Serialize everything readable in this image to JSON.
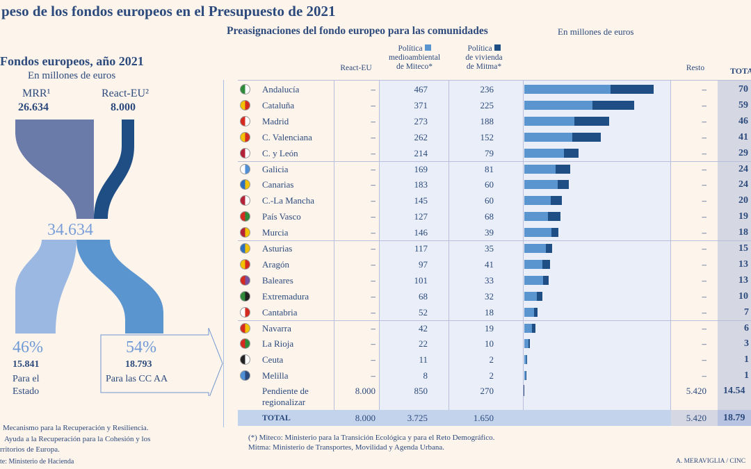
{
  "header": {
    "title": "peso de los fondos europeos en el Presupuesto de 2021",
    "subtitle": "Preasignaciones del fondo europeo para las comunidades",
    "unit": "En millones de euros"
  },
  "left": {
    "title": "Fondos europeos, año 2021",
    "unit": "En millones de euros",
    "mrr_label": "MRR¹",
    "mrr_value": "26.634",
    "react_label": "React-EU²",
    "react_value": "8.000",
    "total": "34.634",
    "estado_pct": "46%",
    "estado_value": "15.841",
    "estado_label1": "Para el",
    "estado_label2": "Estado",
    "ccaa_pct": "54%",
    "ccaa_value": "18.793",
    "ccaa_label": "Para las CC AA",
    "note1": "Mecanismo para la Recuperación y Resiliencia.",
    "note2": "Ayuda a la Recuperación para la Cohesión y los",
    "note3": "rritorios de Europa.",
    "source": "te: Ministerio de Hacienda",
    "colors": {
      "mrr": "#6a7aa9",
      "react": "#1f4e85",
      "estado": "#9ab8e2",
      "ccaa": "#5b95d0"
    }
  },
  "table": {
    "headers": {
      "react": "React-EU",
      "miteco1": "Política",
      "miteco2": "medioambiental",
      "miteco3": "de Miteco*",
      "mitma1": "Política",
      "mitma2": "de vivienda",
      "mitma3": "de Mitma*",
      "resto": "Resto",
      "total": "TOTA"
    },
    "rows": [
      {
        "region": "Andalucía",
        "react": "–",
        "resto": "–",
        "total": "70",
        "flag": [
          "#2e8b3a",
          "#ffffff"
        ]
      },
      {
        "region": "Cataluña",
        "react": "–",
        "resto": "–",
        "total": "59",
        "flag": [
          "#f2c200",
          "#d42a20"
        ]
      },
      {
        "region": "Madrid",
        "react": "–",
        "resto": "–",
        "total": "46",
        "flag": [
          "#d42a20",
          "#ffffff"
        ]
      },
      {
        "region": "C. Valenciana",
        "react": "–",
        "resto": "–",
        "total": "41",
        "flag": [
          "#f2c200",
          "#d42a20"
        ]
      },
      {
        "region": "C. y León",
        "react": "–",
        "resto": "–",
        "total": "29",
        "flag": [
          "#b32236",
          "#ffffff"
        ]
      },
      {
        "region": "Galicia",
        "react": "–",
        "resto": "–",
        "total": "24",
        "flag": [
          "#ffffff",
          "#4f8fd6"
        ]
      },
      {
        "region": "Canarias",
        "react": "–",
        "resto": "–",
        "total": "24",
        "flag": [
          "#2c6fc0",
          "#f2c200"
        ]
      },
      {
        "region": "C.-La Mancha",
        "react": "–",
        "resto": "–",
        "total": "20",
        "flag": [
          "#b32236",
          "#ffffff"
        ]
      },
      {
        "region": "País Vasco",
        "react": "–",
        "resto": "–",
        "total": "19",
        "flag": [
          "#d42a20",
          "#2e8b3a"
        ]
      },
      {
        "region": "Murcia",
        "react": "–",
        "resto": "–",
        "total": "18",
        "flag": [
          "#b32236",
          "#f2c200"
        ]
      },
      {
        "region": "Asturias",
        "react": "–",
        "resto": "–",
        "total": "15",
        "flag": [
          "#2c6fc0",
          "#f2c200"
        ]
      },
      {
        "region": "Aragón",
        "react": "–",
        "resto": "–",
        "total": "13",
        "flag": [
          "#f2c200",
          "#d42a20"
        ]
      },
      {
        "region": "Baleares",
        "react": "–",
        "resto": "–",
        "total": "13",
        "flag": [
          "#d42a20",
          "#7a4fa0"
        ]
      },
      {
        "region": "Extremadura",
        "react": "–",
        "resto": "–",
        "total": "10",
        "flag": [
          "#2e8b3a",
          "#222222"
        ]
      },
      {
        "region": "Cantabria",
        "react": "–",
        "resto": "–",
        "total": "7",
        "flag": [
          "#ffffff",
          "#d42a20"
        ]
      },
      {
        "region": "Navarra",
        "react": "–",
        "resto": "–",
        "total": "6",
        "flag": [
          "#d42a20",
          "#f2c200"
        ]
      },
      {
        "region": "La Rioja",
        "react": "–",
        "resto": "–",
        "total": "3",
        "flag": [
          "#d42a20",
          "#2e8b3a"
        ]
      },
      {
        "region": "Ceuta",
        "react": "–",
        "resto": "–",
        "total": "1",
        "flag": [
          "#222222",
          "#ffffff"
        ]
      },
      {
        "region": "Melilla",
        "react": "–",
        "resto": "–",
        "total": "1",
        "flag": [
          "#4f8fd6",
          "#2c4a7c"
        ]
      }
    ],
    "pending": {
      "region1": "Pendiente de",
      "region2": "regionalizar",
      "react": "8.000",
      "miteco": "850",
      "mitma": "270",
      "resto": "5.420",
      "total": "14.54"
    },
    "totals": {
      "label": "TOTAL",
      "react": "8.000",
      "miteco": "3.725",
      "mitma": "1.650",
      "resto": "5.420",
      "total": "18.79"
    }
  },
  "chart_data": {
    "type": "bar",
    "stacked": true,
    "orientation": "horizontal",
    "categories": [
      "Andalucía",
      "Cataluña",
      "Madrid",
      "C. Valenciana",
      "C. y León",
      "Galicia",
      "Canarias",
      "C.-La Mancha",
      "País Vasco",
      "Murcia",
      "Asturias",
      "Aragón",
      "Baleares",
      "Extremadura",
      "Cantabria",
      "Navarra",
      "La Rioja",
      "Ceuta",
      "Melilla"
    ],
    "series": [
      {
        "name": "Política medioambiental de Miteco",
        "color": "#5b95d0",
        "values": [
          467,
          371,
          273,
          262,
          214,
          169,
          183,
          145,
          127,
          146,
          117,
          97,
          101,
          68,
          52,
          42,
          22,
          11,
          8
        ]
      },
      {
        "name": "Política de vivienda de Mitma",
        "color": "#1f4e85",
        "values": [
          236,
          225,
          188,
          152,
          79,
          81,
          60,
          60,
          68,
          39,
          35,
          41,
          33,
          32,
          18,
          19,
          10,
          2,
          2
        ]
      }
    ],
    "pending_values": [
      850,
      270
    ]
  },
  "footer": {
    "note1": "(*) Miteco: Ministerio para la Transición Ecológica y para el Reto Demográfico.",
    "note2": "Mitma: Ministerio de Transportes, Movilidad y Agenda Urbana.",
    "credit": "A. MERAVIGLIA / CINC"
  }
}
